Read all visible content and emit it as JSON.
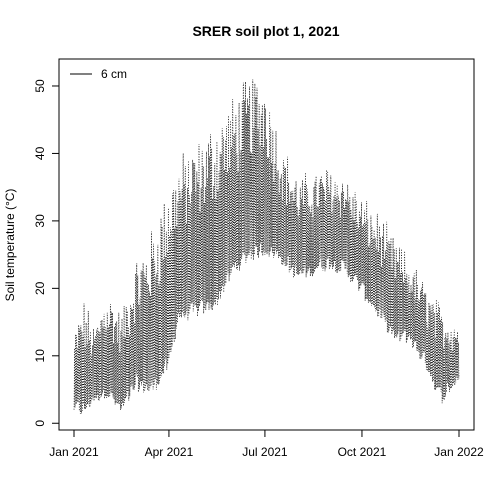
{
  "chart_data": {
    "type": "line",
    "title": "SRER soil plot 1, 2021",
    "xlabel": "",
    "ylabel": "Soil temperature (°C)",
    "xlim": [
      "2021-01-01",
      "2022-01-01"
    ],
    "ylim": [
      -1,
      54
    ],
    "x_ticks": [
      {
        "date": "2021-01-01",
        "label": "Jan 2021"
      },
      {
        "date": "2021-04-01",
        "label": "Apr 2021"
      },
      {
        "date": "2021-07-01",
        "label": "Jul 2021"
      },
      {
        "date": "2021-10-01",
        "label": "Oct 2021"
      },
      {
        "date": "2022-01-01",
        "label": "Jan 2022"
      }
    ],
    "y_ticks": [
      0,
      10,
      20,
      30,
      40,
      50
    ],
    "legend": {
      "position": "top-left",
      "entries": [
        "6 cm"
      ]
    },
    "grid": false,
    "series": [
      {
        "name": "6 cm",
        "color": "#000000",
        "daily_range": [
          {
            "date": "2021-01-01",
            "min": 2.5,
            "max": 13
          },
          {
            "date": "2021-01-10",
            "min": 2,
            "max": 18
          },
          {
            "date": "2021-01-20",
            "min": 4,
            "max": 14
          },
          {
            "date": "2021-02-01",
            "min": 5,
            "max": 20
          },
          {
            "date": "2021-02-15",
            "min": 2,
            "max": 16
          },
          {
            "date": "2021-03-01",
            "min": 6,
            "max": 24
          },
          {
            "date": "2021-03-15",
            "min": 5,
            "max": 28
          },
          {
            "date": "2021-04-01",
            "min": 9,
            "max": 36
          },
          {
            "date": "2021-04-10",
            "min": 16,
            "max": 39
          },
          {
            "date": "2021-05-01",
            "min": 17,
            "max": 42
          },
          {
            "date": "2021-05-15",
            "min": 18,
            "max": 45
          },
          {
            "date": "2021-06-01",
            "min": 23,
            "max": 48
          },
          {
            "date": "2021-06-15",
            "min": 25,
            "max": 51
          },
          {
            "date": "2021-07-01",
            "min": 26,
            "max": 52
          },
          {
            "date": "2021-07-15",
            "min": 25,
            "max": 42
          },
          {
            "date": "2021-08-01",
            "min": 22,
            "max": 36
          },
          {
            "date": "2021-08-15",
            "min": 23,
            "max": 37
          },
          {
            "date": "2021-09-01",
            "min": 24,
            "max": 38
          },
          {
            "date": "2021-09-15",
            "min": 23,
            "max": 37
          },
          {
            "date": "2021-10-01",
            "min": 20,
            "max": 33
          },
          {
            "date": "2021-10-15",
            "min": 17,
            "max": 31
          },
          {
            "date": "2021-11-01",
            "min": 13,
            "max": 27
          },
          {
            "date": "2021-11-15",
            "min": 13,
            "max": 24
          },
          {
            "date": "2021-12-01",
            "min": 9,
            "max": 20
          },
          {
            "date": "2021-12-15",
            "min": 4,
            "max": 17
          },
          {
            "date": "2021-12-31",
            "min": 7,
            "max": 15
          }
        ]
      }
    ]
  }
}
